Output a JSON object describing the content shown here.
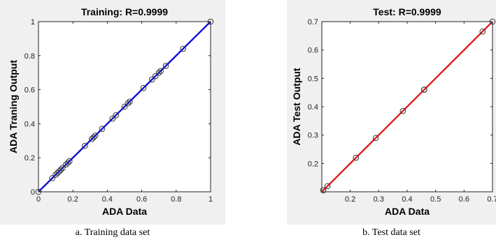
{
  "chart_data": [
    {
      "type": "scatter",
      "title": "Training: R=0.9999",
      "xlabel": "ADA Data",
      "ylabel": "ADA Traning Output",
      "xlim": [
        0,
        1
      ],
      "ylim": [
        0,
        1
      ],
      "xticks": [
        "0",
        "0.2",
        "0.4",
        "0.6",
        "0.8",
        "1"
      ],
      "yticks": [
        "0",
        "0.2",
        "0.4",
        "0.6",
        "0.8",
        "1"
      ],
      "fit_color": "#1010d8",
      "marker_color": "#333333",
      "grid": false,
      "points": [
        [
          0.0,
          0.0
        ],
        [
          0.08,
          0.08
        ],
        [
          0.1,
          0.1
        ],
        [
          0.11,
          0.11
        ],
        [
          0.12,
          0.12
        ],
        [
          0.13,
          0.13
        ],
        [
          0.14,
          0.14
        ],
        [
          0.16,
          0.16
        ],
        [
          0.17,
          0.17
        ],
        [
          0.18,
          0.18
        ],
        [
          0.27,
          0.27
        ],
        [
          0.31,
          0.31
        ],
        [
          0.32,
          0.32
        ],
        [
          0.33,
          0.33
        ],
        [
          0.37,
          0.37
        ],
        [
          0.43,
          0.43
        ],
        [
          0.45,
          0.45
        ],
        [
          0.5,
          0.5
        ],
        [
          0.52,
          0.52
        ],
        [
          0.53,
          0.53
        ],
        [
          0.61,
          0.61
        ],
        [
          0.66,
          0.66
        ],
        [
          0.68,
          0.68
        ],
        [
          0.7,
          0.7
        ],
        [
          0.71,
          0.71
        ],
        [
          0.74,
          0.74
        ],
        [
          0.84,
          0.84
        ],
        [
          1.0,
          1.0
        ]
      ],
      "fit_line": [
        [
          0,
          0
        ],
        [
          1,
          1
        ]
      ]
    },
    {
      "type": "scatter",
      "title": "Test: R=0.9999",
      "xlabel": "ADA Data",
      "ylabel": "ADA Test Output",
      "xlim": [
        0.1,
        0.7
      ],
      "ylim": [
        0.1,
        0.7
      ],
      "xticks": [
        "0.2",
        "0.3",
        "0.4",
        "0.5",
        "0.6",
        "0.7"
      ],
      "yticks": [
        "0.2",
        "0.3",
        "0.4",
        "0.5",
        "0.6",
        "0.7"
      ],
      "fit_color": "#e02020",
      "marker_color": "#333333",
      "grid": false,
      "points": [
        [
          0.105,
          0.105
        ],
        [
          0.12,
          0.12
        ],
        [
          0.22,
          0.22
        ],
        [
          0.29,
          0.29
        ],
        [
          0.385,
          0.385
        ],
        [
          0.46,
          0.46
        ],
        [
          0.46,
          0.46
        ],
        [
          0.665,
          0.665
        ],
        [
          0.7,
          0.7
        ]
      ],
      "fit_line": [
        [
          0.1,
          0.1
        ],
        [
          0.7,
          0.7
        ]
      ]
    }
  ],
  "captions": {
    "a": "a. Training data set",
    "b": "b. Test data set"
  }
}
